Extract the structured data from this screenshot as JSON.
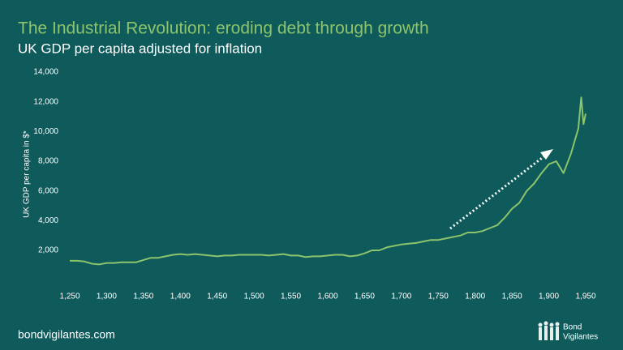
{
  "chart_data": {
    "type": "line",
    "title": "The Industrial Revolution: eroding debt through growth",
    "subtitle": "UK GDP per capita adjusted for inflation",
    "y_label": "UK GDP per capita in $*",
    "color": "#8cc46c",
    "x": [
      1250,
      1260,
      1270,
      1280,
      1290,
      1300,
      1310,
      1320,
      1330,
      1340,
      1350,
      1360,
      1370,
      1380,
      1390,
      1400,
      1410,
      1420,
      1430,
      1440,
      1450,
      1460,
      1470,
      1480,
      1490,
      1500,
      1510,
      1520,
      1530,
      1540,
      1550,
      1560,
      1570,
      1580,
      1590,
      1600,
      1610,
      1620,
      1630,
      1640,
      1650,
      1660,
      1670,
      1680,
      1690,
      1700,
      1710,
      1720,
      1730,
      1740,
      1750,
      1760,
      1770,
      1780,
      1790,
      1800,
      1810,
      1820,
      1830,
      1840,
      1850,
      1860,
      1870,
      1880,
      1890,
      1900,
      1910,
      1920,
      1930,
      1940,
      1944,
      1947,
      1950
    ],
    "values": [
      1300,
      1300,
      1250,
      1100,
      1050,
      1150,
      1150,
      1200,
      1200,
      1200,
      1350,
      1500,
      1500,
      1600,
      1700,
      1750,
      1700,
      1750,
      1700,
      1650,
      1600,
      1650,
      1650,
      1700,
      1700,
      1700,
      1700,
      1650,
      1700,
      1750,
      1650,
      1650,
      1550,
      1600,
      1600,
      1650,
      1700,
      1700,
      1600,
      1650,
      1800,
      2000,
      2000,
      2200,
      2300,
      2400,
      2450,
      2500,
      2600,
      2700,
      2700,
      2800,
      2900,
      3000,
      3200,
      3200,
      3300,
      3500,
      3700,
      4200,
      4800,
      5200,
      6000,
      6500,
      7200,
      7800,
      8000,
      7200,
      8500,
      10200,
      12300,
      10500,
      11200
    ],
    "xlim": [
      1250,
      1950
    ],
    "xticks": [
      {
        "value": 1250,
        "label": "1,250"
      },
      {
        "value": 1300,
        "label": "1,300"
      },
      {
        "value": 1350,
        "label": "1,350"
      },
      {
        "value": 1400,
        "label": "1,400"
      },
      {
        "value": 1450,
        "label": "1,450"
      },
      {
        "value": 1500,
        "label": "1,500"
      },
      {
        "value": 1550,
        "label": "1,550"
      },
      {
        "value": 1600,
        "label": "1,600"
      },
      {
        "value": 1650,
        "label": "1,650"
      },
      {
        "value": 1700,
        "label": "1,700"
      },
      {
        "value": 1750,
        "label": "1,750"
      },
      {
        "value": 1800,
        "label": "1,800"
      },
      {
        "value": 1850,
        "label": "1,850"
      },
      {
        "value": 1900,
        "label": "1,900"
      },
      {
        "value": 1950,
        "label": "1,950"
      }
    ],
    "ylim": [
      0,
      14000
    ],
    "yticks": [
      {
        "value": 2000,
        "label": "2,000"
      },
      {
        "value": 4000,
        "label": "4,000"
      },
      {
        "value": 6000,
        "label": "6,000"
      },
      {
        "value": 8000,
        "label": "8,000"
      },
      {
        "value": 10000,
        "label": "10,000"
      },
      {
        "value": 12000,
        "label": "12,000"
      },
      {
        "value": 14000,
        "label": "14,000"
      }
    ]
  },
  "footer": {
    "site": "bondvigilantes.com",
    "logo": [
      "Bond",
      "Vigilantes"
    ]
  }
}
